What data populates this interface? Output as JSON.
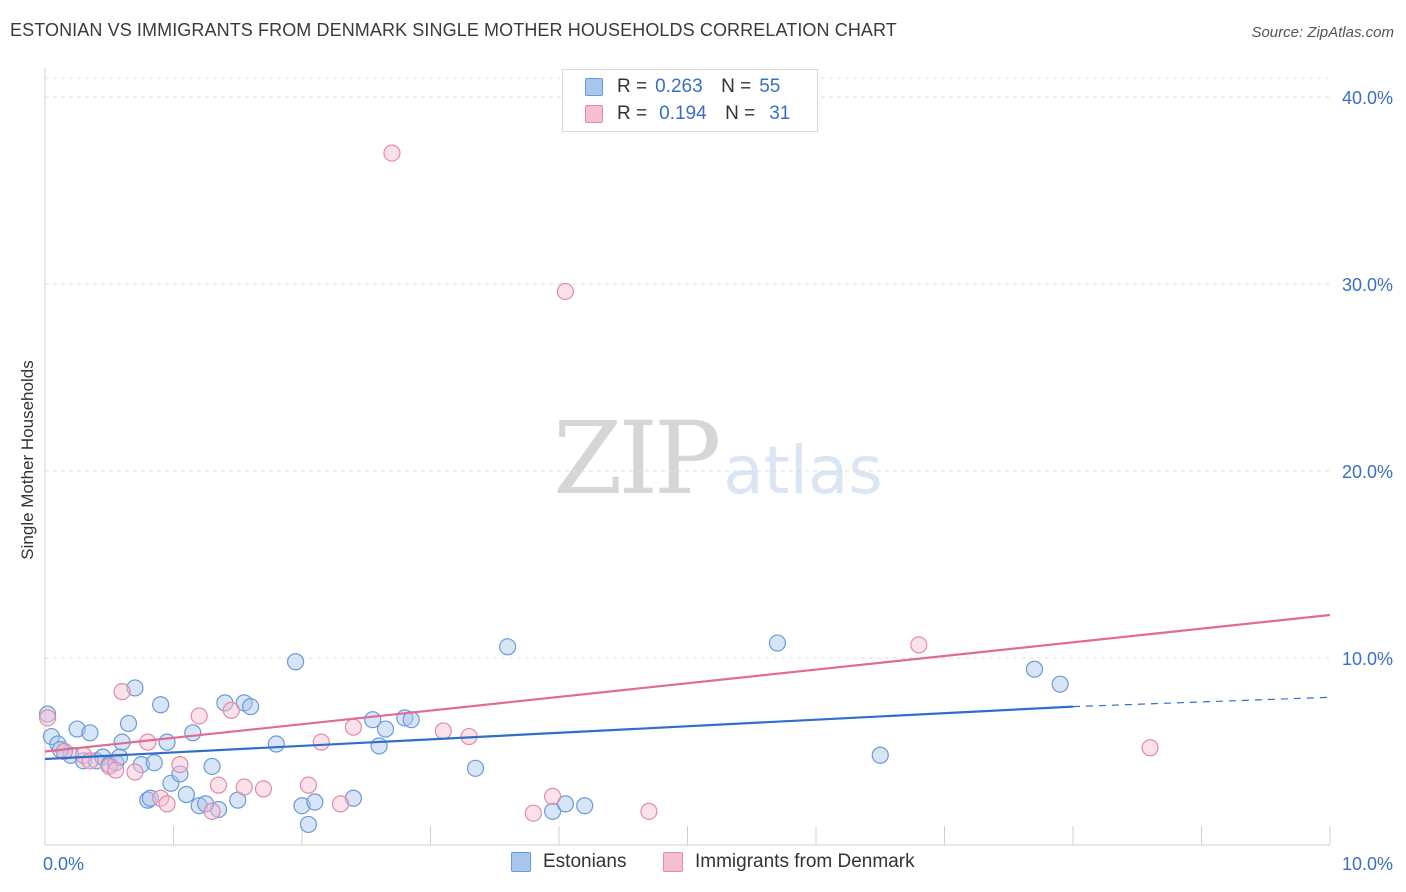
{
  "header": {
    "title": "ESTONIAN VS IMMIGRANTS FROM DENMARK SINGLE MOTHER HOUSEHOLDS CORRELATION CHART",
    "source": "Source: ZipAtlas.com"
  },
  "watermark": {
    "zip": "ZIP",
    "atlas": "atlas"
  },
  "stats_legend": [
    {
      "r_label": "R =",
      "r_value": "0.263",
      "n_label": "N =",
      "n_value": "55",
      "color": "#a9c6ee",
      "border": "#6b9ad8"
    },
    {
      "r_label": "R =",
      "r_value": "0.194",
      "n_label": "N =",
      "n_value": "31",
      "color": "#f6bfd0",
      "border": "#e48aa8"
    }
  ],
  "chart_data": {
    "type": "scatter",
    "title": "ESTONIAN VS IMMIGRANTS FROM DENMARK SINGLE MOTHER HOUSEHOLDS CORRELATION CHART",
    "xlabel": "",
    "ylabel": "Single Mother Households",
    "xlim": [
      0,
      10
    ],
    "ylim": [
      0,
      40
    ],
    "x_tick_labels": [
      {
        "value": 0,
        "label": "0.0%"
      },
      {
        "value": 10,
        "label": "10.0%"
      }
    ],
    "y_tick_labels": [
      {
        "value": 10,
        "label": "10.0%"
      },
      {
        "value": 20,
        "label": "20.0%"
      },
      {
        "value": 30,
        "label": "30.0%"
      },
      {
        "value": 40,
        "label": "40.0%"
      }
    ],
    "grid": true,
    "legend_position": "top-center",
    "series": [
      {
        "name": "Estonians",
        "color": "#6b9ad8",
        "fill": "#a9c6ee",
        "trend": {
          "x0": 0,
          "y0": 4.6,
          "x1": 8.0,
          "y1": 7.4,
          "dash_to": 10,
          "dash_y": 7.9
        },
        "points": [
          [
            0.02,
            7.0
          ],
          [
            0.05,
            5.8
          ],
          [
            0.1,
            5.4
          ],
          [
            0.15,
            5.0
          ],
          [
            0.2,
            4.8
          ],
          [
            0.25,
            6.2
          ],
          [
            0.3,
            4.5
          ],
          [
            0.35,
            6.0
          ],
          [
            0.4,
            4.5
          ],
          [
            0.45,
            4.7
          ],
          [
            0.5,
            4.3
          ],
          [
            0.55,
            4.4
          ],
          [
            0.6,
            5.5
          ],
          [
            0.65,
            6.5
          ],
          [
            0.7,
            8.4
          ],
          [
            0.75,
            4.3
          ],
          [
            0.8,
            2.4
          ],
          [
            0.82,
            2.5
          ],
          [
            0.85,
            4.4
          ],
          [
            0.9,
            7.5
          ],
          [
            0.95,
            5.5
          ],
          [
            0.98,
            3.3
          ],
          [
            1.05,
            3.8
          ],
          [
            1.1,
            2.7
          ],
          [
            1.15,
            6.0
          ],
          [
            1.2,
            2.1
          ],
          [
            1.3,
            4.2
          ],
          [
            1.35,
            1.9
          ],
          [
            1.4,
            7.6
          ],
          [
            1.5,
            2.4
          ],
          [
            1.55,
            7.6
          ],
          [
            1.6,
            7.4
          ],
          [
            1.8,
            5.4
          ],
          [
            1.95,
            9.8
          ],
          [
            2.0,
            2.1
          ],
          [
            2.05,
            1.1
          ],
          [
            2.1,
            2.3
          ],
          [
            2.4,
            2.5
          ],
          [
            2.55,
            6.7
          ],
          [
            2.6,
            5.3
          ],
          [
            2.65,
            6.2
          ],
          [
            2.8,
            6.8
          ],
          [
            2.85,
            6.7
          ],
          [
            3.35,
            4.1
          ],
          [
            3.6,
            10.6
          ],
          [
            3.95,
            1.8
          ],
          [
            4.05,
            2.2
          ],
          [
            4.2,
            2.1
          ],
          [
            5.7,
            10.8
          ],
          [
            6.5,
            4.8
          ],
          [
            7.7,
            9.4
          ],
          [
            7.9,
            8.6
          ],
          [
            0.58,
            4.7
          ],
          [
            0.12,
            5.1
          ],
          [
            1.25,
            2.2
          ]
        ]
      },
      {
        "name": "Immigrants from Denmark",
        "color": "#e48aa8",
        "fill": "#f6bfd0",
        "trend": {
          "x0": 0,
          "y0": 5.0,
          "x1": 10.0,
          "y1": 12.3
        },
        "points": [
          [
            0.02,
            6.8
          ],
          [
            0.15,
            5.0
          ],
          [
            0.3,
            4.8
          ],
          [
            0.35,
            4.5
          ],
          [
            0.5,
            4.2
          ],
          [
            0.55,
            4.0
          ],
          [
            0.6,
            8.2
          ],
          [
            0.7,
            3.9
          ],
          [
            0.8,
            5.5
          ],
          [
            0.9,
            2.5
          ],
          [
            0.95,
            2.2
          ],
          [
            1.05,
            4.3
          ],
          [
            1.2,
            6.9
          ],
          [
            1.3,
            1.8
          ],
          [
            1.35,
            3.2
          ],
          [
            1.45,
            7.2
          ],
          [
            1.55,
            3.1
          ],
          [
            1.7,
            3.0
          ],
          [
            2.05,
            3.2
          ],
          [
            2.15,
            5.5
          ],
          [
            2.3,
            2.2
          ],
          [
            2.4,
            6.3
          ],
          [
            2.7,
            37.0
          ],
          [
            3.1,
            6.1
          ],
          [
            3.3,
            5.8
          ],
          [
            3.8,
            1.7
          ],
          [
            3.95,
            2.6
          ],
          [
            4.05,
            29.6
          ],
          [
            4.7,
            1.8
          ],
          [
            6.8,
            10.7
          ],
          [
            8.6,
            5.2
          ]
        ]
      }
    ]
  }
}
